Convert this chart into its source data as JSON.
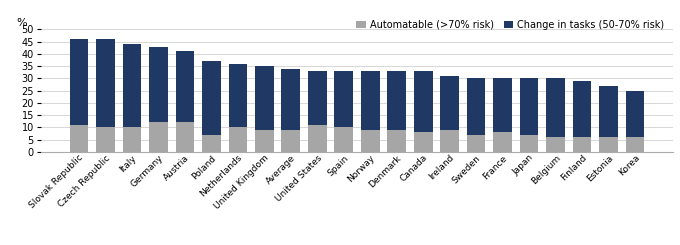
{
  "categories": [
    "Slovak Republic",
    "Czech Republic",
    "Italy",
    "Germany",
    "Austria",
    "Poland",
    "Netherlands",
    "United Kingdom",
    "Average",
    "United States",
    "Spain",
    "Norway",
    "Denmark",
    "Canada",
    "Ireland",
    "Sweden",
    "France",
    "Japan",
    "Belgium",
    "Finland",
    "Estonia",
    "Korea"
  ],
  "automatable": [
    11,
    10,
    10,
    12,
    12,
    7,
    10,
    9,
    9,
    11,
    10,
    9,
    9,
    8,
    9,
    7,
    8,
    7,
    6,
    6,
    6,
    6
  ],
  "change_in_tasks": [
    35,
    36,
    34,
    31,
    29,
    30,
    26,
    26,
    25,
    22,
    23,
    24,
    24,
    25,
    22,
    23,
    22,
    23,
    24,
    23,
    21,
    19
  ],
  "automatable_color": "#a6a6a6",
  "change_color": "#1f3864",
  "ylabel": "%",
  "ylim": [
    0,
    50
  ],
  "yticks": [
    0,
    5,
    10,
    15,
    20,
    25,
    30,
    35,
    40,
    45,
    50
  ],
  "legend_automatable": "Automatable (>70% risk)",
  "legend_change": "Change in tasks (50-70% risk)",
  "bar_width": 0.7,
  "figsize": [
    6.8,
    2.45
  ],
  "dpi": 100
}
